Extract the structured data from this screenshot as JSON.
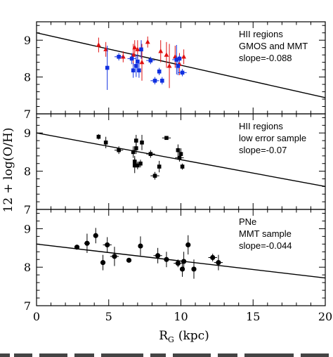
{
  "chart_data": {
    "type": "scatter",
    "ylabel": "12 + log(O/H)",
    "xlabel": "R",
    "xlabel_sub": "G",
    "xlabel_unit": "(kpc)",
    "xlim": [
      0,
      20
    ],
    "xticks": [
      "0",
      "5",
      "10",
      "15",
      "20"
    ],
    "panels": [
      {
        "ylim": [
          7,
          9.5
        ],
        "yticks": [
          "7",
          "8",
          "9"
        ],
        "annotation": [
          "HII regions",
          "GMOS and MMT",
          "slope=-0.088"
        ],
        "fit": {
          "intercept": 9.2,
          "slope": -0.088
        },
        "series": [
          {
            "color": "#e01010",
            "marker": "triangle",
            "points": [
              {
                "x": 4.3,
                "y": 8.87,
                "yerr": 0.2
              },
              {
                "x": 4.8,
                "y": 8.75,
                "yerr": 0.2
              },
              {
                "x": 6.0,
                "y": 8.55,
                "yerr": 0.15
              },
              {
                "x": 6.7,
                "y": 8.6,
                "yerr": 0.3
              },
              {
                "x": 6.8,
                "y": 8.8,
                "yerr": 0.2
              },
              {
                "x": 7.0,
                "y": 8.75,
                "yerr": 0.25
              },
              {
                "x": 7.3,
                "y": 8.4,
                "yerr": 0.5
              },
              {
                "x": 7.7,
                "y": 8.95,
                "yerr": 0.15
              },
              {
                "x": 8.6,
                "y": 8.7,
                "yerr": 0.3
              },
              {
                "x": 9.0,
                "y": 8.6,
                "yerr": 0.35
              },
              {
                "x": 9.2,
                "y": 8.3,
                "yerr": 0.6
              },
              {
                "x": 9.6,
                "y": 8.55,
                "yerr": 0.3
              },
              {
                "x": 9.9,
                "y": 8.35,
                "yerr": 0.3
              },
              {
                "x": 10.2,
                "y": 8.55,
                "yerr": 0.2
              }
            ]
          },
          {
            "color": "#1030e0",
            "marker": "square",
            "points": [
              {
                "x": 4.9,
                "y": 8.25,
                "yerr": 0.6
              },
              {
                "x": 5.7,
                "y": 8.55,
                "yerr": 0.1,
                "xerr": 0.3
              },
              {
                "x": 6.6,
                "y": 8.5,
                "yerr": 0.15,
                "xerr": 0.3
              },
              {
                "x": 6.7,
                "y": 8.18,
                "yerr": 0.2
              },
              {
                "x": 6.9,
                "y": 8.3,
                "yerr": 0.3
              },
              {
                "x": 7.0,
                "y": 8.42,
                "yerr": 0.2
              },
              {
                "x": 7.1,
                "y": 8.18,
                "yerr": 0.2
              },
              {
                "x": 7.25,
                "y": 8.75,
                "yerr": 0.25
              },
              {
                "x": 7.9,
                "y": 8.45,
                "yerr": 0.1,
                "xerr": 0.3
              },
              {
                "x": 8.2,
                "y": 7.9,
                "yerr": 0.1,
                "xerr": 0.3
              },
              {
                "x": 8.7,
                "y": 7.9,
                "yerr": 0.1
              },
              {
                "x": 8.5,
                "y": 8.15,
                "yerr": 0.1
              },
              {
                "x": 9.7,
                "y": 8.47,
                "yerr": 0.4,
                "xerr": 0.3
              },
              {
                "x": 9.9,
                "y": 8.5,
                "yerr": 0.1
              },
              {
                "x": 9.8,
                "y": 8.3,
                "yerr": 0.25
              },
              {
                "x": 10.1,
                "y": 8.12,
                "yerr": 0.1,
                "xerr": 0.3
              }
            ]
          }
        ]
      },
      {
        "ylim": [
          7,
          9.5
        ],
        "yticks": [
          "7",
          "8",
          "9"
        ],
        "annotation": [
          "HII regions",
          "low error sample",
          "slope=-0.07"
        ],
        "fit": {
          "intercept": 9.0,
          "slope": -0.07
        },
        "series": [
          {
            "color": "#000000",
            "marker": "square",
            "points": [
              {
                "x": 4.3,
                "y": 8.9,
                "yerr": 0.07
              },
              {
                "x": 4.8,
                "y": 8.75,
                "yerr": 0.15
              },
              {
                "x": 5.7,
                "y": 8.55,
                "yerr": 0.1,
                "xerr": 0.3
              },
              {
                "x": 6.7,
                "y": 8.5,
                "yerr": 0.15
              },
              {
                "x": 6.8,
                "y": 8.25,
                "yerr": 0.15
              },
              {
                "x": 6.9,
                "y": 8.6,
                "yerr": 0.15
              },
              {
                "x": 6.9,
                "y": 8.8,
                "yerr": 0.15
              },
              {
                "x": 7.0,
                "y": 8.15,
                "yerr": 0.1
              },
              {
                "x": 6.8,
                "y": 8.15,
                "yerr": 0.2
              },
              {
                "x": 7.2,
                "y": 8.2,
                "yerr": 0.1
              },
              {
                "x": 7.3,
                "y": 8.75,
                "yerr": 0.2
              },
              {
                "x": 7.9,
                "y": 8.45,
                "yerr": 0.1,
                "xerr": 0.3
              },
              {
                "x": 8.2,
                "y": 7.88,
                "yerr": 0.1,
                "xerr": 0.3
              },
              {
                "x": 8.5,
                "y": 8.12,
                "yerr": 0.15
              },
              {
                "x": 9.0,
                "y": 8.87,
                "yerr": 0.03,
                "xerr": 0.3
              },
              {
                "x": 9.8,
                "y": 8.55,
                "yerr": 0.15
              },
              {
                "x": 9.9,
                "y": 8.35,
                "yerr": 0.1,
                "xerr": 0.3
              },
              {
                "x": 10.0,
                "y": 8.45,
                "yerr": 0.15
              },
              {
                "x": 10.1,
                "y": 8.12,
                "yerr": 0.08
              }
            ]
          }
        ]
      },
      {
        "ylim": [
          7,
          9.5
        ],
        "yticks": [
          "7",
          "8",
          "9"
        ],
        "annotation": [
          "PNe",
          "MMT sample",
          "slope=-0.044"
        ],
        "fit": {
          "intercept": 8.6,
          "slope": -0.044
        },
        "series": [
          {
            "color": "#000000",
            "marker": "circle",
            "points": [
              {
                "x": 2.8,
                "y": 8.52,
                "yerr": 0.05
              },
              {
                "x": 3.5,
                "y": 8.62,
                "yerr": 0.25,
                "xerr": 0.2
              },
              {
                "x": 4.1,
                "y": 8.82,
                "yerr": 0.2
              },
              {
                "x": 4.6,
                "y": 8.12,
                "yerr": 0.2
              },
              {
                "x": 4.9,
                "y": 8.58,
                "yerr": 0.2,
                "xerr": 0.3
              },
              {
                "x": 5.4,
                "y": 8.28,
                "yerr": 0.25,
                "xerr": 0.3
              },
              {
                "x": 6.4,
                "y": 8.18,
                "yerr": 0.05
              },
              {
                "x": 7.2,
                "y": 8.55,
                "yerr": 0.25
              },
              {
                "x": 8.4,
                "y": 8.3,
                "yerr": 0.2,
                "xerr": 0.3
              },
              {
                "x": 9.0,
                "y": 8.2,
                "yerr": 0.2
              },
              {
                "x": 9.8,
                "y": 8.1,
                "yerr": 0.1,
                "xerr": 0.3
              },
              {
                "x": 10.1,
                "y": 7.95,
                "yerr": 0.2
              },
              {
                "x": 10.2,
                "y": 8.15,
                "yerr": 0.25
              },
              {
                "x": 10.5,
                "y": 8.58,
                "yerr": 0.25
              },
              {
                "x": 10.9,
                "y": 7.95,
                "yerr": 0.25
              },
              {
                "x": 12.2,
                "y": 8.25,
                "yerr": 0.1,
                "xerr": 0.3
              },
              {
                "x": 12.6,
                "y": 8.12,
                "yerr": 0.2,
                "xerr": 0.3
              }
            ]
          }
        ]
      }
    ]
  }
}
